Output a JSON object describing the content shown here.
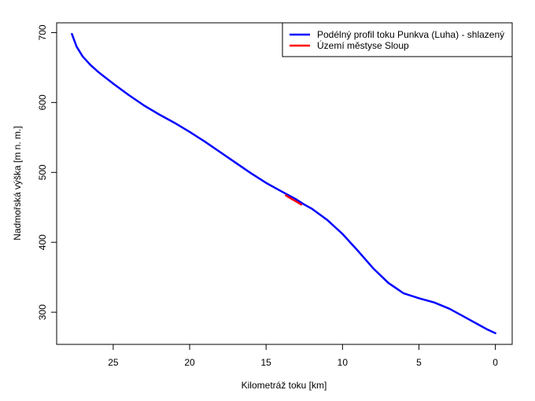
{
  "chart_data": {
    "type": "line",
    "xlabel": "Kilometráž toku [km]",
    "ylabel": "Nadmořská výška [m n. m.]",
    "xlim": [
      28.7,
      -1.1
    ],
    "ylim": [
      254,
      714
    ],
    "x_ticks": [
      25,
      20,
      15,
      10,
      5,
      0
    ],
    "y_ticks": [
      300,
      400,
      500,
      600,
      700
    ],
    "grid": false,
    "legend_position": "top-right",
    "series": [
      {
        "name": "Podélný profil toku Punkva (Luha) - shlazený",
        "color": "#0000ff",
        "x": [
          27.7,
          27.4,
          27.0,
          26.5,
          26.0,
          25.0,
          24.0,
          23.0,
          22.0,
          21.0,
          20.0,
          19.0,
          18.0,
          17.0,
          16.0,
          15.0,
          14.0,
          13.5,
          13.0,
          12.5,
          12.0,
          11.0,
          10.0,
          9.0,
          8.0,
          7.0,
          6.0,
          5.0,
          4.0,
          3.0,
          2.0,
          1.0,
          0.5,
          0.0
        ],
        "y": [
          698,
          680,
          666,
          654,
          644,
          627,
          611,
          596,
          583,
          571,
          558,
          544,
          529,
          514,
          499,
          485,
          473,
          467,
          461,
          454,
          448,
          432,
          412,
          388,
          363,
          342,
          327,
          320,
          314,
          305,
          293,
          281,
          275,
          270
        ]
      },
      {
        "name": "Území městyse Sloup",
        "color": "#ff0000",
        "x": [
          13.7,
          13.4,
          13.0,
          12.7
        ],
        "y": [
          467,
          463,
          458,
          454
        ]
      }
    ]
  }
}
